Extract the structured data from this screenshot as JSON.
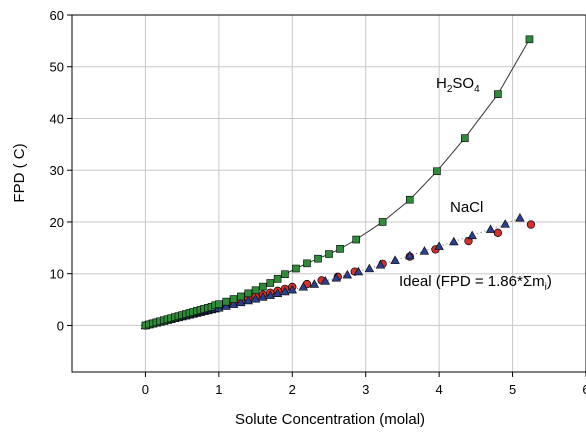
{
  "chart_data": {
    "type": "scatter",
    "xlabel": "Solute Concentration (molal)",
    "ylabel": "FPD ( C)",
    "xlim": [
      -1,
      6
    ],
    "ylim": [
      -9,
      60
    ],
    "xticks": [
      0,
      1,
      2,
      3,
      4,
      5,
      6
    ],
    "yticks": [
      0,
      10,
      20,
      30,
      40,
      50,
      60
    ],
    "grid": true,
    "annotations": {
      "h2so4": "H2SO4",
      "nacl": "NaCl",
      "ideal": "Ideal (FPD = 1.86*Σmi)"
    },
    "colors": {
      "h2so4": "#2e8b3a",
      "nacl": "#2b3f8f",
      "ideal": "#d8312a",
      "curve": "#333333",
      "grid": "#c8c8c8"
    },
    "series": [
      {
        "name": "H2SO4",
        "marker": "square",
        "x": [
          0.0,
          0.05,
          0.1,
          0.15,
          0.2,
          0.25,
          0.3,
          0.35,
          0.4,
          0.45,
          0.5,
          0.55,
          0.6,
          0.65,
          0.7,
          0.75,
          0.8,
          0.85,
          0.9,
          0.95,
          1.0,
          1.1,
          1.2,
          1.3,
          1.4,
          1.5,
          1.6,
          1.7,
          1.8,
          1.9,
          2.05,
          2.2,
          2.35,
          2.5,
          2.65,
          2.87,
          3.23,
          3.6,
          3.97,
          4.35,
          4.8,
          5.23
        ],
        "y": [
          0.0,
          0.2,
          0.4,
          0.6,
          0.8,
          1.0,
          1.2,
          1.4,
          1.6,
          1.8,
          2.0,
          2.2,
          2.4,
          2.6,
          2.8,
          3.0,
          3.2,
          3.4,
          3.6,
          3.9,
          4.1,
          4.6,
          5.1,
          5.6,
          6.2,
          6.8,
          7.5,
          8.2,
          9.0,
          9.9,
          11.0,
          12.0,
          12.9,
          13.8,
          14.8,
          16.6,
          20.0,
          24.3,
          29.8,
          36.2,
          44.7,
          55.3
        ]
      },
      {
        "name": "NaCl",
        "marker": "triangle",
        "x": [
          0.0,
          0.05,
          0.1,
          0.15,
          0.2,
          0.25,
          0.3,
          0.35,
          0.4,
          0.45,
          0.5,
          0.55,
          0.6,
          0.65,
          0.7,
          0.75,
          0.8,
          0.85,
          0.9,
          0.95,
          1.0,
          1.1,
          1.2,
          1.3,
          1.4,
          1.5,
          1.6,
          1.7,
          1.8,
          1.9,
          2.0,
          2.15,
          2.3,
          2.45,
          2.6,
          2.75,
          2.9,
          3.05,
          3.2,
          3.4,
          3.6,
          3.8,
          4.0,
          4.2,
          4.45,
          4.7,
          4.9,
          5.1
        ],
        "y": [
          0.0,
          0.17,
          0.34,
          0.51,
          0.68,
          0.85,
          1.02,
          1.19,
          1.36,
          1.53,
          1.7,
          1.87,
          2.04,
          2.21,
          2.38,
          2.55,
          2.72,
          2.89,
          3.06,
          3.23,
          3.4,
          3.75,
          4.1,
          4.45,
          4.8,
          5.15,
          5.5,
          5.85,
          6.2,
          6.55,
          6.9,
          7.45,
          8.0,
          8.6,
          9.2,
          9.8,
          10.4,
          11.0,
          11.7,
          12.6,
          13.5,
          14.4,
          15.3,
          16.2,
          17.4,
          18.6,
          19.6,
          20.8
        ]
      },
      {
        "name": "Ideal (FPD = 1.86*Σmi)",
        "marker": "circle",
        "x": [
          0.0,
          0.05,
          0.1,
          0.15,
          0.2,
          0.25,
          0.3,
          0.35,
          0.4,
          0.45,
          0.5,
          0.55,
          0.6,
          0.65,
          0.7,
          0.75,
          0.8,
          0.85,
          0.9,
          0.95,
          1.0,
          1.1,
          1.2,
          1.3,
          1.4,
          1.5,
          1.6,
          1.7,
          1.8,
          1.9,
          2.0,
          2.2,
          2.4,
          2.62,
          2.85,
          3.23,
          3.6,
          3.95,
          4.4,
          4.8,
          5.25
        ],
        "y": [
          0.0,
          0.19,
          0.37,
          0.56,
          0.74,
          0.93,
          1.12,
          1.3,
          1.49,
          1.67,
          1.86,
          2.05,
          2.23,
          2.42,
          2.6,
          2.79,
          2.98,
          3.16,
          3.35,
          3.53,
          3.72,
          4.09,
          4.46,
          4.84,
          5.21,
          5.58,
          5.95,
          6.32,
          6.7,
          7.07,
          7.44,
          8.0,
          8.7,
          9.4,
          10.4,
          11.9,
          13.3,
          14.7,
          16.3,
          17.9,
          19.5
        ]
      }
    ]
  }
}
